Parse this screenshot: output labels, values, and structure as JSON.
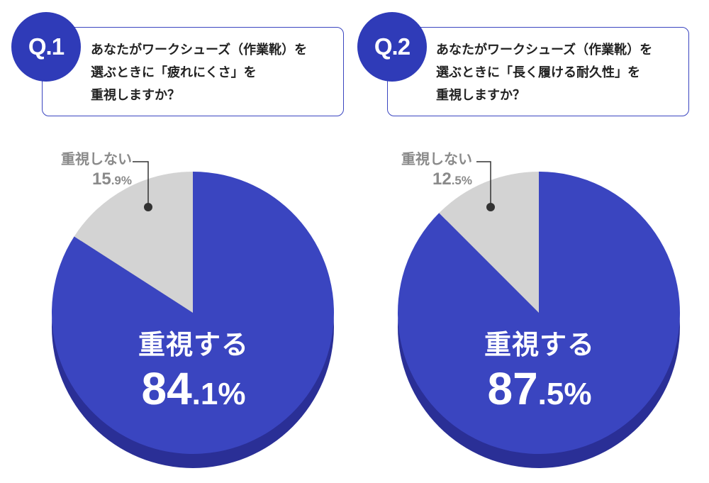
{
  "questions": [
    {
      "badge": "Q.1",
      "lines": [
        "あなたがワークシューズ（作業靴）を",
        "選ぶときに「疲れにくさ」を",
        "重視しますか？"
      ]
    },
    {
      "badge": "Q.2",
      "lines": [
        "あなたがワークシューズ（作業靴）を",
        "選ぶときに「長く履ける耐久性」を",
        "重視しますか？"
      ]
    }
  ],
  "chart_data": [
    {
      "type": "pie",
      "categories": [
        "重視する",
        "重視しない"
      ],
      "values": [
        84.1,
        15.9
      ],
      "unit": "%",
      "value_labels": [
        {
          "int": "84",
          "dec": ".1%"
        },
        {
          "int": "15",
          "dec": ".9%"
        }
      ],
      "colors": [
        "#3a45c0",
        "#d3d3d3"
      ]
    },
    {
      "type": "pie",
      "categories": [
        "重視する",
        "重視しない"
      ],
      "values": [
        87.5,
        12.5
      ],
      "unit": "%",
      "value_labels": [
        {
          "int": "87",
          "dec": ".5%"
        },
        {
          "int": "12",
          "dec": ".5%"
        }
      ],
      "colors": [
        "#3a45c0",
        "#d3d3d3"
      ]
    }
  ],
  "colors": {
    "accent": "#2f3bb8",
    "shadow": "#2a2f96",
    "leader": "#333333"
  }
}
